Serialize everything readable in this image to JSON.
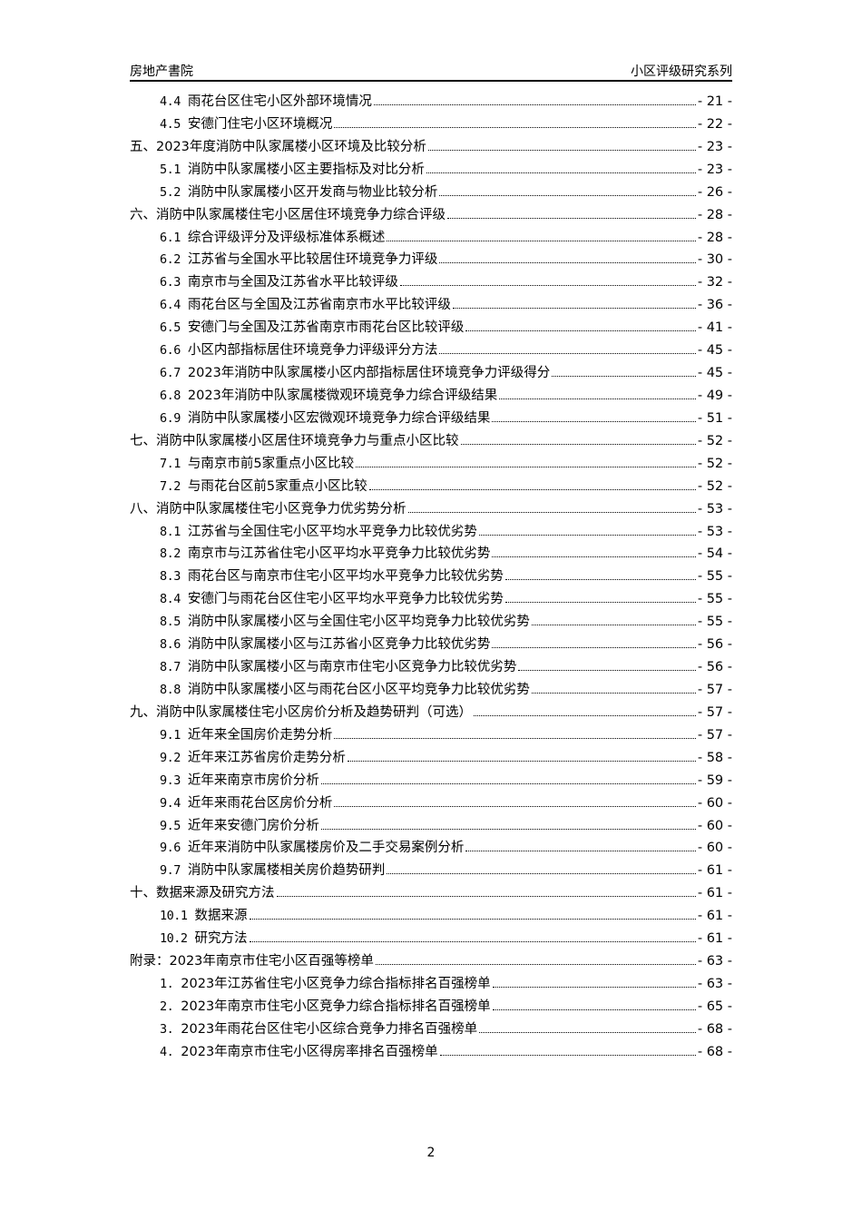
{
  "header": {
    "left": "房地产書院",
    "right": "小区评级研究系列"
  },
  "toc": [
    {
      "level": 2,
      "num": "4.4",
      "title": "雨花台区住宅小区外部环境情况",
      "page": "- 21 -"
    },
    {
      "level": 2,
      "num": "4.5",
      "title": "安德门住宅小区环境概况",
      "page": "- 22 -"
    },
    {
      "level": 1,
      "num": "",
      "title": "五、2023年度消防中队家属楼小区环境及比较分析",
      "page": "- 23 -"
    },
    {
      "level": 2,
      "num": "5.1",
      "title": "消防中队家属楼小区主要指标及对比分析",
      "page": "- 23 -"
    },
    {
      "level": 2,
      "num": "5.2",
      "title": "消防中队家属楼小区开发商与物业比较分析",
      "page": "- 26 -"
    },
    {
      "level": 1,
      "num": "",
      "title": "六、消防中队家属楼住宅小区居住环境竞争力综合评级",
      "page": "- 28 -"
    },
    {
      "level": 2,
      "num": "6.1",
      "title": "综合评级评分及评级标准体系概述",
      "page": "- 28 -"
    },
    {
      "level": 2,
      "num": "6.2",
      "title": "江苏省与全国水平比较居住环境竞争力评级",
      "page": "- 30 -"
    },
    {
      "level": 2,
      "num": "6.3",
      "title": "南京市与全国及江苏省水平比较评级",
      "page": "- 32 -"
    },
    {
      "level": 2,
      "num": "6.4",
      "title": "雨花台区与全国及江苏省南京市水平比较评级",
      "page": "- 36 -"
    },
    {
      "level": 2,
      "num": "6.5",
      "title": "安德门与全国及江苏省南京市雨花台区比较评级",
      "page": "- 41 -"
    },
    {
      "level": 2,
      "num": "6.6",
      "title": "小区内部指标居住环境竞争力评级评分方法",
      "page": "- 45 -"
    },
    {
      "level": 2,
      "num": "6.7",
      "title": "2023年消防中队家属楼小区内部指标居住环境竞争力评级得分",
      "page": "- 45 -"
    },
    {
      "level": 2,
      "num": "6.8",
      "title": "2023年消防中队家属楼微观环境竞争力综合评级结果",
      "page": "- 49 -"
    },
    {
      "level": 2,
      "num": "6.9",
      "title": "消防中队家属楼小区宏微观环境竞争力综合评级结果",
      "page": "- 51 -"
    },
    {
      "level": 1,
      "num": "",
      "title": "七、消防中队家属楼小区居住环境竞争力与重点小区比较",
      "page": "- 52 -"
    },
    {
      "level": 2,
      "num": "7.1",
      "title": "与南京市前5家重点小区比较",
      "page": "- 52 -"
    },
    {
      "level": 2,
      "num": "7.2",
      "title": "与雨花台区前5家重点小区比较",
      "page": "- 52 -"
    },
    {
      "level": 1,
      "num": "",
      "title": "八、消防中队家属楼住宅小区竞争力优劣势分析",
      "page": "- 53 -"
    },
    {
      "level": 2,
      "num": "8.1",
      "title": "江苏省与全国住宅小区平均水平竞争力比较优劣势",
      "page": "- 53 -"
    },
    {
      "level": 2,
      "num": "8.2",
      "title": "南京市与江苏省住宅小区平均水平竞争力比较优劣势",
      "page": "- 54 -"
    },
    {
      "level": 2,
      "num": "8.3",
      "title": "雨花台区与南京市住宅小区平均水平竞争力比较优劣势",
      "page": "- 55 -"
    },
    {
      "level": 2,
      "num": "8.4",
      "title": "安德门与雨花台区住宅小区平均水平竞争力比较优劣势",
      "page": "- 55 -"
    },
    {
      "level": 2,
      "num": "8.5",
      "title": "消防中队家属楼小区与全国住宅小区平均竞争力比较优劣势",
      "page": "- 55 -"
    },
    {
      "level": 2,
      "num": "8.6",
      "title": "消防中队家属楼小区与江苏省小区竞争力比较优劣势",
      "page": "- 56 -"
    },
    {
      "level": 2,
      "num": "8.7",
      "title": "消防中队家属楼小区与南京市住宅小区竞争力比较优劣势",
      "page": "- 56 -"
    },
    {
      "level": 2,
      "num": "8.8",
      "title": "消防中队家属楼小区与雨花台区小区平均竞争力比较优劣势",
      "page": "- 57 -"
    },
    {
      "level": 1,
      "num": "",
      "title": "九、消防中队家属楼住宅小区房价分析及趋势研判（可选）",
      "page": "- 57 -"
    },
    {
      "level": 2,
      "num": "9.1",
      "title": "近年来全国房价走势分析",
      "page": "- 57 -"
    },
    {
      "level": 2,
      "num": "9.2",
      "title": "近年来江苏省房价走势分析",
      "page": "- 58 -"
    },
    {
      "level": 2,
      "num": "9.3",
      "title": "近年来南京市房价分析",
      "page": "- 59 -"
    },
    {
      "level": 2,
      "num": "9.4",
      "title": "近年来雨花台区房价分析",
      "page": "- 60 -"
    },
    {
      "level": 2,
      "num": "9.5",
      "title": "近年来安德门房价分析",
      "page": "- 60 -"
    },
    {
      "level": 2,
      "num": "9.6",
      "title": "近年来消防中队家属楼房价及二手交易案例分析",
      "page": "- 60 -"
    },
    {
      "level": 2,
      "num": "9.7",
      "title": "消防中队家属楼相关房价趋势研判",
      "page": "- 61 -"
    },
    {
      "level": 1,
      "num": "",
      "title": "十、数据来源及研究方法",
      "page": "- 61 -"
    },
    {
      "level": 2,
      "num": "10.1",
      "title": "数据来源",
      "page": "- 61 -"
    },
    {
      "level": 2,
      "num": "10.2",
      "title": "研究方法",
      "page": "- 61 -"
    },
    {
      "level": 1,
      "num": "",
      "title": "附录：2023年南京市住宅小区百强等榜单",
      "page": "- 63 -"
    },
    {
      "level": 2,
      "num": "1.",
      "title": "2023年江苏省住宅小区竞争力综合指标排名百强榜单",
      "page": "- 63 -"
    },
    {
      "level": 2,
      "num": "2.",
      "title": "2023年南京市住宅小区竞争力综合指标排名百强榜单",
      "page": "- 65 -"
    },
    {
      "level": 2,
      "num": "3.",
      "title": "2023年雨花台区住宅小区综合竞争力排名百强榜单",
      "page": "- 68 -"
    },
    {
      "level": 2,
      "num": "4.",
      "title": "2023年南京市住宅小区得房率排名百强榜单",
      "page": "- 68 -"
    }
  ],
  "footer": {
    "page_number": "2"
  }
}
